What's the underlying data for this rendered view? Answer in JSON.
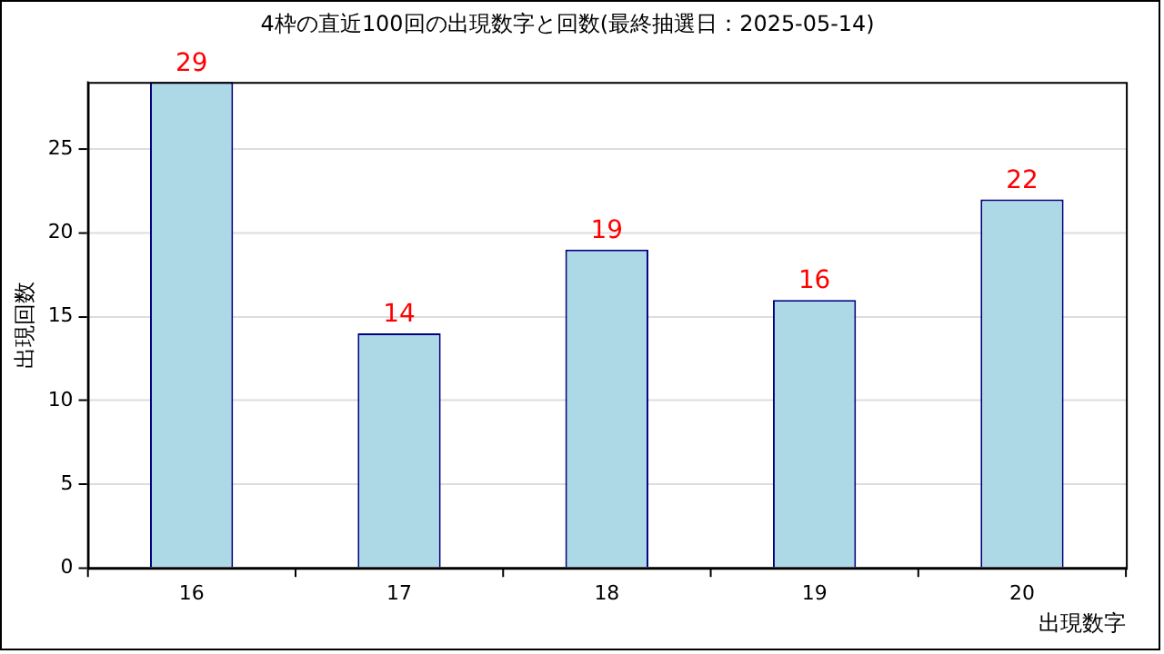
{
  "chart_data": {
    "type": "bar",
    "title": "4枠の直近100回の出現数字と回数(最終抽選日：2025-05-14)",
    "xlabel": "出現数字",
    "ylabel": "出現回数",
    "categories": [
      "16",
      "17",
      "18",
      "19",
      "20"
    ],
    "values": [
      29,
      14,
      19,
      16,
      22
    ],
    "color": "#add8e6",
    "ylim": [
      0,
      29
    ],
    "yticks": [
      0,
      5,
      10,
      15,
      20,
      25
    ],
    "grid": "y",
    "data_labels": true,
    "legend": false
  }
}
